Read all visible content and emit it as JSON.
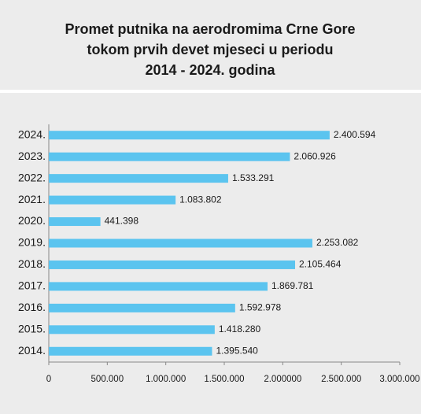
{
  "chart_data": {
    "type": "bar",
    "orientation": "horizontal",
    "title": [
      "Promet putnika na aerodromima Crne Gore",
      "tokom prvih devet mjeseci u periodu",
      "2014 - 2024. godina"
    ],
    "categories": [
      "2024.",
      "2023.",
      "2022.",
      "2021.",
      "2020.",
      "2019.",
      "2018.",
      "2017.",
      "2016.",
      "2015.",
      "2014."
    ],
    "values": [
      2400594,
      2060926,
      1533291,
      1083802,
      441398,
      2253082,
      2105464,
      1869781,
      1592978,
      1418280,
      1395540
    ],
    "value_labels": [
      "2.400.594",
      "2.060.926",
      "1.533.291",
      "1.083.802",
      "441.398",
      "2.253.082",
      "2.105.464",
      "1.869.781",
      "1.592.978",
      "1.418.280",
      "1.395.540"
    ],
    "color": "#5bc4ef",
    "xlim": [
      0,
      3000000
    ],
    "xticks": [
      0,
      {
        "value": 500000,
        "label": "500.000"
      },
      {
        "value": 1000000,
        "label": "1.000.000"
      },
      {
        "value": 1500000,
        "label": "1.500.000"
      },
      {
        "value": 2000000,
        "label": "2.000000"
      },
      {
        "value": 2500000,
        "label": "2.500.000"
      },
      {
        "value": 3000000,
        "label": "3.000.000"
      }
    ]
  }
}
